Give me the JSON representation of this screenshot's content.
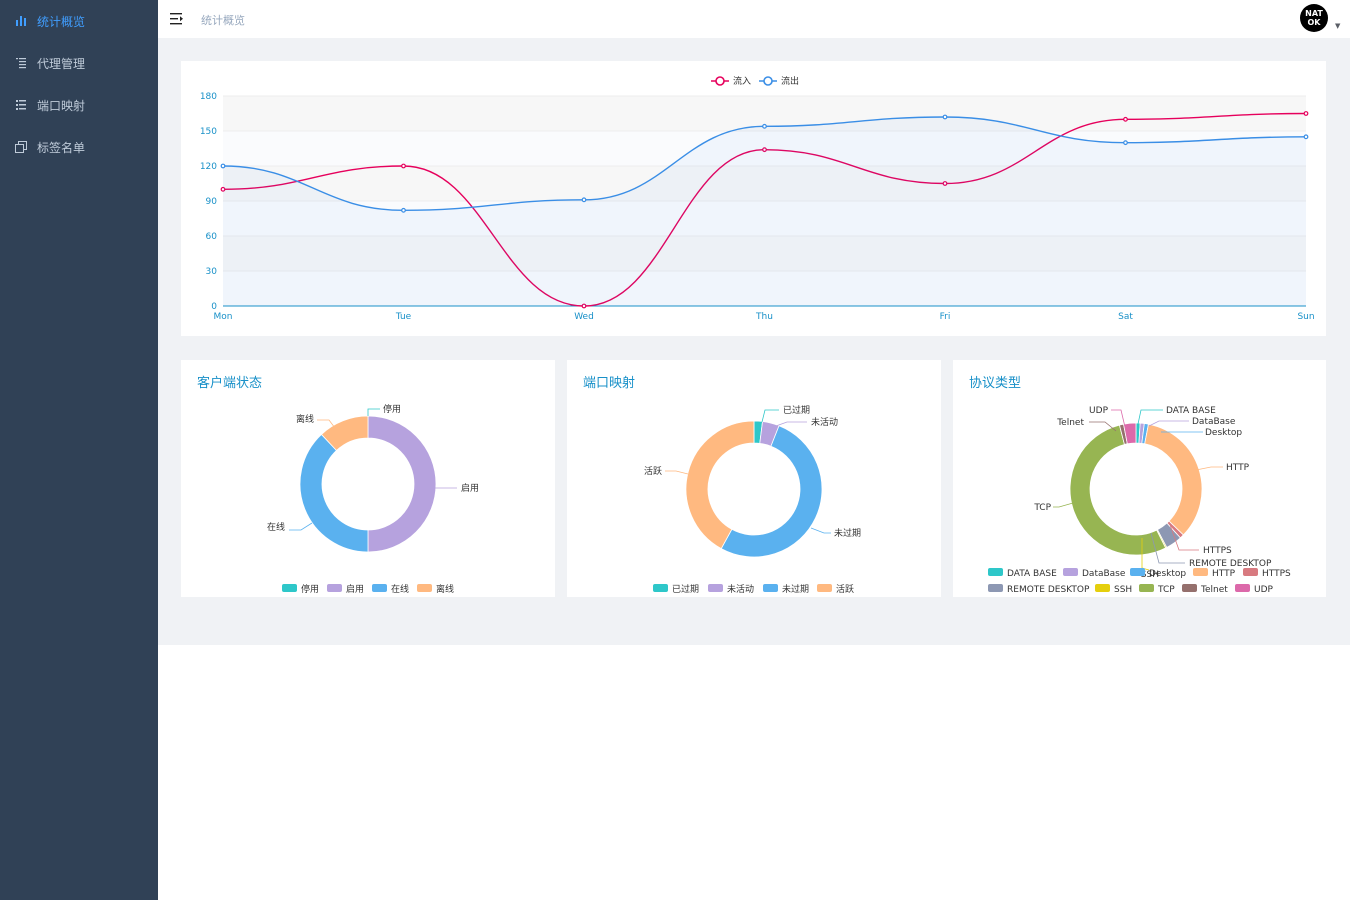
{
  "sidebar": {
    "items": [
      {
        "label": "统计概览",
        "icon": "bar-chart-icon",
        "active": true
      },
      {
        "label": "代理管理",
        "icon": "list-icon",
        "active": false
      },
      {
        "label": "端口映射",
        "icon": "list-icon",
        "active": false
      },
      {
        "label": "标签名单",
        "icon": "copy-icon",
        "active": false
      }
    ]
  },
  "header": {
    "breadcrumb": "统计概览",
    "avatar_line1": "NAT",
    "avatar_line2": "OK",
    "caret": "▼"
  },
  "colors": {
    "sidebar_bg": "#304156",
    "active": "#409eff",
    "inflow": "#e6005c",
    "outflow": "#3a8ee6",
    "teal": "#2ec7c9",
    "purple": "#b6a2de",
    "blue": "#5ab1ef",
    "orange": "#ffb980"
  },
  "traffic_chart": {
    "chart_data": {
      "type": "line",
      "categories": [
        "Mon",
        "Tue",
        "Wed",
        "Thu",
        "Fri",
        "Sat",
        "Sun"
      ],
      "ylim": [
        0,
        180
      ],
      "yticks": [
        0,
        30,
        60,
        90,
        120,
        150,
        180
      ],
      "legend_position": "top-center",
      "series": [
        {
          "name": "流入",
          "color": "#e6005c",
          "values": [
            100,
            120,
            0,
            134,
            105,
            160,
            165
          ]
        },
        {
          "name": "流出",
          "color": "#3a8ee6",
          "values": [
            120,
            82,
            91,
            154,
            162,
            140,
            145
          ]
        }
      ]
    }
  },
  "client_status": {
    "title": "客户端状态",
    "chart_data": {
      "type": "pie",
      "title": "客户端状态",
      "legend_position": "bottom",
      "slices": [
        {
          "name": "停用",
          "value": 0,
          "color": "#2ec7c9"
        },
        {
          "name": "启用",
          "value": 50,
          "color": "#b6a2de"
        },
        {
          "name": "在线",
          "value": 38,
          "color": "#5ab1ef"
        },
        {
          "name": "离线",
          "value": 12,
          "color": "#ffb980"
        }
      ]
    }
  },
  "port_mapping": {
    "title": "端口映射",
    "chart_data": {
      "type": "pie",
      "title": "端口映射",
      "legend_position": "bottom",
      "slices": [
        {
          "name": "已过期",
          "value": 2,
          "color": "#2ec7c9"
        },
        {
          "name": "未活动",
          "value": 4,
          "color": "#b6a2de"
        },
        {
          "name": "未过期",
          "value": 52,
          "color": "#5ab1ef"
        },
        {
          "name": "活跃",
          "value": 42,
          "color": "#ffb980"
        }
      ]
    }
  },
  "protocol_type": {
    "title": "协议类型",
    "chart_data": {
      "type": "pie",
      "title": "协议类型",
      "legend_position": "bottom",
      "slices": [
        {
          "name": "DATA BASE",
          "value": 1,
          "color": "#2ec7c9"
        },
        {
          "name": "DataBase",
          "value": 1,
          "color": "#b6a2de"
        },
        {
          "name": "Desktop",
          "value": 1,
          "color": "#5ab1ef"
        },
        {
          "name": "HTTP",
          "value": 34,
          "color": "#ffb980"
        },
        {
          "name": "HTTPS",
          "value": 1,
          "color": "#d87a80"
        },
        {
          "name": "REMOTE DESKTOP",
          "value": 4,
          "color": "#8d98b3"
        },
        {
          "name": "SSH",
          "value": 0.3,
          "color": "#e5cf0d"
        },
        {
          "name": "TCP",
          "value": 53,
          "color": "#97b552"
        },
        {
          "name": "Telnet",
          "value": 1,
          "color": "#95706d"
        },
        {
          "name": "UDP",
          "value": 3,
          "color": "#dc69aa"
        }
      ]
    }
  }
}
